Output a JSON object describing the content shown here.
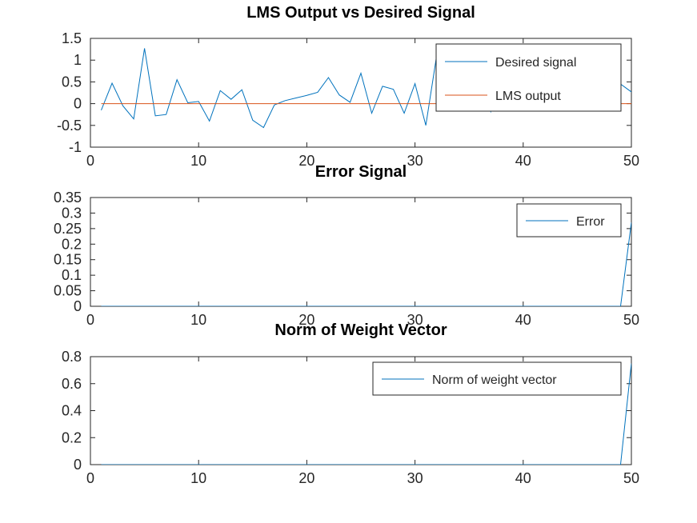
{
  "chart_data": [
    {
      "type": "line",
      "title": "LMS Output vs Desired Signal",
      "xlim": [
        0,
        50
      ],
      "ylim": [
        -1,
        1.5
      ],
      "xticks": [
        "0",
        "10",
        "20",
        "30",
        "40",
        "50"
      ],
      "yticks": [
        "-1",
        "-0.5",
        "0",
        "0.5",
        "1",
        "1.5"
      ],
      "legend_position": "top-right",
      "series": [
        {
          "name": "Desired signal",
          "color": "#0072bd",
          "x": [
            1,
            2,
            3,
            4,
            5,
            6,
            7,
            8,
            9,
            10,
            11,
            12,
            13,
            14,
            15,
            16,
            17,
            18,
            19,
            20,
            21,
            22,
            23,
            24,
            25,
            26,
            27,
            28,
            29,
            30,
            31,
            32,
            33,
            34,
            35,
            36,
            37,
            38,
            39,
            40,
            41,
            42,
            43,
            44,
            45,
            46,
            47,
            48,
            49,
            50
          ],
          "y": [
            -0.15,
            0.47,
            -0.05,
            -0.35,
            1.27,
            -0.28,
            -0.25,
            0.55,
            0.02,
            0.05,
            -0.4,
            0.3,
            0.1,
            0.32,
            -0.38,
            -0.55,
            -0.03,
            0.07,
            0.13,
            0.19,
            0.26,
            0.6,
            0.2,
            0.03,
            0.7,
            -0.22,
            0.4,
            0.33,
            -0.22,
            0.46,
            -0.5,
            1.1,
            0.4,
            1.35,
            0.6,
            1.0,
            -0.18,
            0.62,
            0.28,
            0.95,
            0.15,
            0.5,
            0.7,
            0.08,
            0.55,
            0.28,
            1.0,
            0.05,
            0.45,
            0.27
          ]
        },
        {
          "name": "LMS output",
          "color": "#d95319",
          "x": [
            1,
            2,
            3,
            4,
            5,
            6,
            7,
            8,
            9,
            10,
            11,
            12,
            13,
            14,
            15,
            16,
            17,
            18,
            19,
            20,
            21,
            22,
            23,
            24,
            25,
            26,
            27,
            28,
            29,
            30,
            31,
            32,
            33,
            34,
            35,
            36,
            37,
            38,
            39,
            40,
            41,
            42,
            43,
            44,
            45,
            46,
            47,
            48,
            49,
            50
          ],
          "y": [
            0,
            0,
            0,
            0,
            0,
            0,
            0,
            0,
            0,
            0,
            0,
            0,
            0,
            0,
            0,
            0,
            0,
            0,
            0,
            0,
            0,
            0,
            0,
            0,
            0,
            0,
            0,
            0,
            0,
            0,
            0,
            0,
            0,
            0,
            0,
            0,
            0,
            0,
            0,
            0,
            0,
            0,
            0,
            0,
            0,
            0,
            0,
            0,
            0,
            0
          ]
        }
      ]
    },
    {
      "type": "line",
      "title": "Error Signal",
      "xlim": [
        0,
        50
      ],
      "ylim": [
        0,
        0.35
      ],
      "xticks": [
        "0",
        "10",
        "20",
        "30",
        "40",
        "50"
      ],
      "yticks": [
        "0",
        "0.05",
        "0.1",
        "0.15",
        "0.2",
        "0.25",
        "0.3",
        "0.35"
      ],
      "legend_position": "top-right",
      "series": [
        {
          "name": "Error",
          "color": "#0072bd",
          "x": [
            1,
            2,
            3,
            4,
            5,
            6,
            7,
            8,
            9,
            10,
            11,
            12,
            13,
            14,
            15,
            16,
            17,
            18,
            19,
            20,
            21,
            22,
            23,
            24,
            25,
            26,
            27,
            28,
            29,
            30,
            31,
            32,
            33,
            34,
            35,
            36,
            37,
            38,
            39,
            40,
            41,
            42,
            43,
            44,
            45,
            46,
            47,
            48,
            49,
            50
          ],
          "y": [
            0,
            0,
            0,
            0,
            0,
            0,
            0,
            0,
            0,
            0,
            0,
            0,
            0,
            0,
            0,
            0,
            0,
            0,
            0,
            0,
            0,
            0,
            0,
            0,
            0,
            0,
            0,
            0,
            0,
            0,
            0,
            0,
            0,
            0,
            0,
            0,
            0,
            0,
            0,
            0,
            0,
            0,
            0,
            0,
            0,
            0,
            0,
            0,
            0,
            0.27
          ]
        }
      ]
    },
    {
      "type": "line",
      "title": "Norm of Weight Vector",
      "xlim": [
        0,
        50
      ],
      "ylim": [
        0,
        0.8
      ],
      "xticks": [
        "0",
        "10",
        "20",
        "30",
        "40",
        "50"
      ],
      "yticks": [
        "0",
        "0.2",
        "0.4",
        "0.6",
        "0.8"
      ],
      "legend_position": "top-right",
      "series": [
        {
          "name": "Norm of weight vector",
          "color": "#0072bd",
          "x": [
            1,
            2,
            3,
            4,
            5,
            6,
            7,
            8,
            9,
            10,
            11,
            12,
            13,
            14,
            15,
            16,
            17,
            18,
            19,
            20,
            21,
            22,
            23,
            24,
            25,
            26,
            27,
            28,
            29,
            30,
            31,
            32,
            33,
            34,
            35,
            36,
            37,
            38,
            39,
            40,
            41,
            42,
            43,
            44,
            45,
            46,
            47,
            48,
            49,
            50
          ],
          "y": [
            0,
            0,
            0,
            0,
            0,
            0,
            0,
            0,
            0,
            0,
            0,
            0,
            0,
            0,
            0,
            0,
            0,
            0,
            0,
            0,
            0,
            0,
            0,
            0,
            0,
            0,
            0,
            0,
            0,
            0,
            0,
            0,
            0,
            0,
            0,
            0,
            0,
            0,
            0,
            0,
            0,
            0,
            0,
            0,
            0,
            0,
            0,
            0,
            0,
            0.75
          ]
        }
      ]
    }
  ]
}
